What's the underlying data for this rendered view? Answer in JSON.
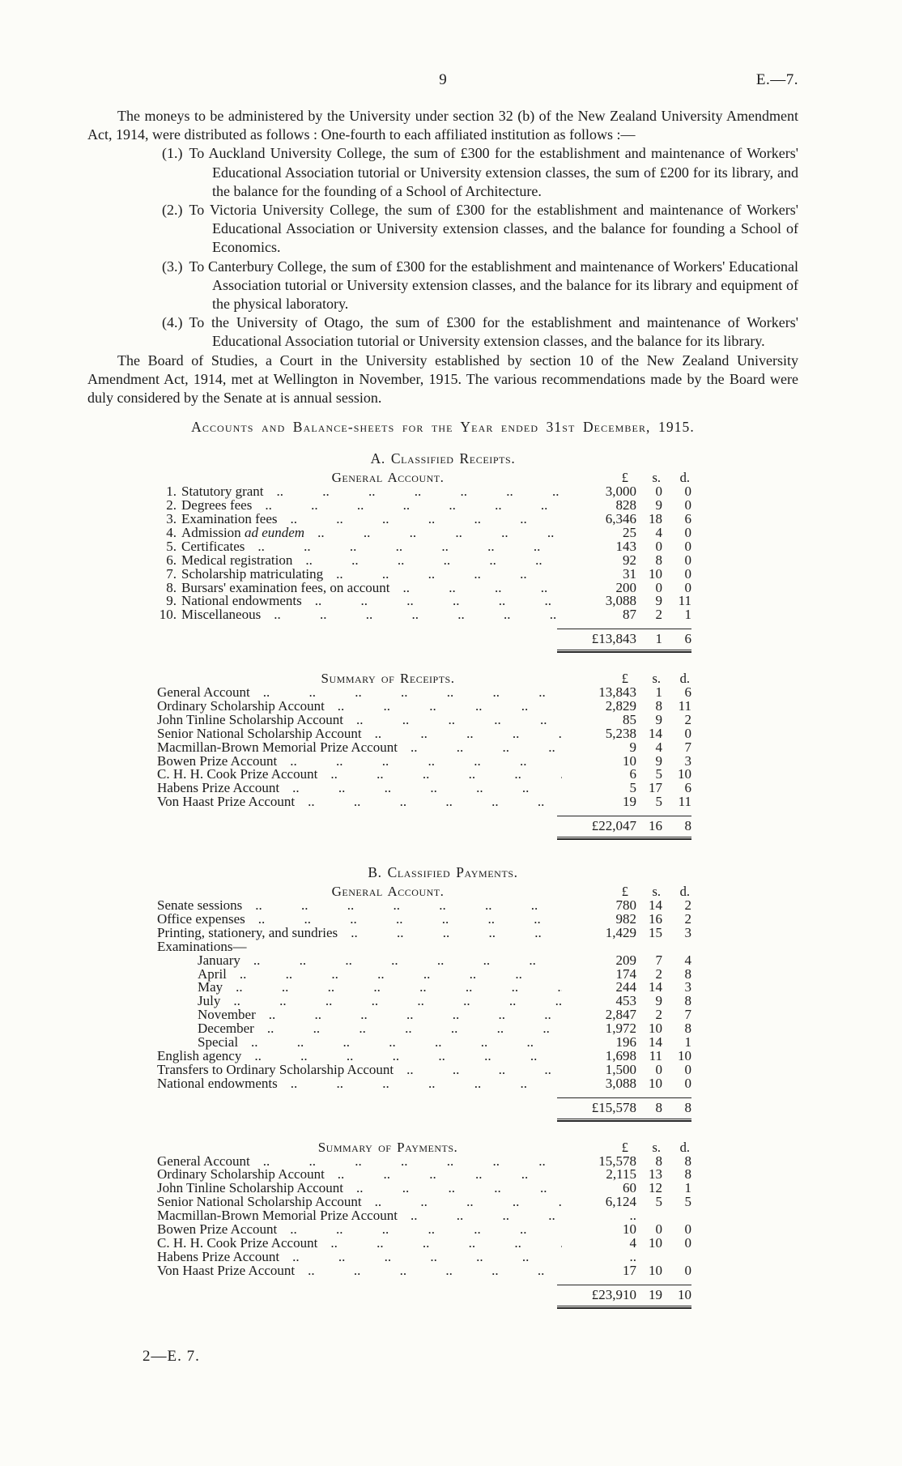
{
  "page": {
    "number": "9",
    "doc_ref": "E.—7.",
    "footer": "2—E. 7."
  },
  "intro": {
    "para1": "The moneys to be administered by the University under section 32 (b) of the New Zealand University Amendment Act, 1914, were distributed as follows : One-fourth to each affiliated institution as follows :—",
    "items": [
      {
        "num": "(1.)",
        "text": "To Auckland University College, the sum of £300 for the establishment and maintenance of Workers' Educational Association tutorial or University extension classes, the sum of £200 for its library, and the balance for the founding of a School of Architecture."
      },
      {
        "num": "(2.)",
        "text": "To Victoria University College, the sum of £300 for the establishment and maintenance of Workers' Educational Association or University extension classes, and the balance for founding a School of Economics."
      },
      {
        "num": "(3.)",
        "text": "To Canterbury College, the sum of £300 for the establishment and maintenance of Workers' Educational Association tutorial or University extension classes, and the balance for its library and equipment of the physical laboratory."
      },
      {
        "num": "(4.)",
        "text": "To the University of Otago, the sum of £300 for the establishment and maintenance of Workers' Educational Association tutorial or University extension classes, and the balance for its library."
      }
    ],
    "para2": "The Board of Studies, a Court in the University established by section 10 of the New Zealand University Amendment Act, 1914, met at Wellington in November, 1915.  The various recommendations made by the Board were duly considered by the Senate at is annual session."
  },
  "accounts_heading": "Accounts and Balance-sheets for the Year ended 31st December, 1915.",
  "amount_columns": {
    "pounds": "£",
    "s": "s.",
    "d": "d."
  },
  "receipts": {
    "section_heading": "A. Classified Receipts.",
    "general": {
      "heading": "General Account.",
      "rows": [
        {
          "num": "1.",
          "label": "Statutory grant",
          "pounds": "3,000",
          "s": "0",
          "d": "0"
        },
        {
          "num": "2.",
          "label": "Degrees fees",
          "pounds": "828",
          "s": "9",
          "d": "0"
        },
        {
          "num": "3.",
          "label": "Examination fees",
          "pounds": "6,346",
          "s": "18",
          "d": "6"
        },
        {
          "num": "4.",
          "label": "Admission ",
          "label_italic": "ad eundem",
          "pounds": "25",
          "s": "4",
          "d": "0"
        },
        {
          "num": "5.",
          "label": "Certificates",
          "pounds": "143",
          "s": "0",
          "d": "0"
        },
        {
          "num": "6.",
          "label": "Medical registration",
          "pounds": "92",
          "s": "8",
          "d": "0"
        },
        {
          "num": "7.",
          "label": "Scholarship matriculating",
          "pounds": "31",
          "s": "10",
          "d": "0"
        },
        {
          "num": "8.",
          "label": "Bursars' examination fees, on account",
          "pounds": "200",
          "s": "0",
          "d": "0"
        },
        {
          "num": "9.",
          "label": "National endowments",
          "pounds": "3,088",
          "s": "9",
          "d": "11"
        },
        {
          "num": "10.",
          "label": "Miscellaneous",
          "pounds": "87",
          "s": "2",
          "d": "1"
        }
      ],
      "total": {
        "pounds": "£13,843",
        "s": "1",
        "d": "6"
      }
    },
    "summary": {
      "heading": "Summary of Receipts.",
      "rows": [
        {
          "label": "General Account",
          "pounds": "13,843",
          "s": "1",
          "d": "6"
        },
        {
          "label": "Ordinary Scholarship Account",
          "pounds": "2,829",
          "s": "8",
          "d": "11"
        },
        {
          "label": "John Tinline Scholarship Account",
          "pounds": "85",
          "s": "9",
          "d": "2"
        },
        {
          "label": "Senior National Scholarship Account",
          "pounds": "5,238",
          "s": "14",
          "d": "0"
        },
        {
          "label": "Macmillan-Brown Memorial Prize Account",
          "pounds": "9",
          "s": "4",
          "d": "7"
        },
        {
          "label": "Bowen Prize Account",
          "pounds": "10",
          "s": "9",
          "d": "3"
        },
        {
          "label": "C. H. H. Cook Prize Account",
          "pounds": "6",
          "s": "5",
          "d": "10"
        },
        {
          "label": "Habens Prize Account",
          "pounds": "5",
          "s": "17",
          "d": "6"
        },
        {
          "label": "Von Haast Prize Account",
          "pounds": "19",
          "s": "5",
          "d": "11"
        }
      ],
      "total": {
        "pounds": "£22,047",
        "s": "16",
        "d": "8"
      }
    }
  },
  "payments": {
    "section_heading": "B. Classified Payments.",
    "general": {
      "heading": "General Account.",
      "rows": [
        {
          "label": "Senate sessions",
          "pounds": "780",
          "s": "14",
          "d": "2"
        },
        {
          "label": "Office expenses",
          "pounds": "982",
          "s": "16",
          "d": "2"
        },
        {
          "label": "Printing, stationery, and sundries",
          "pounds": "1,429",
          "s": "15",
          "d": "3"
        },
        {
          "label": "Examinations—",
          "leader": false
        },
        {
          "label": "January",
          "indent": true,
          "pounds": "209",
          "s": "7",
          "d": "4"
        },
        {
          "label": "April",
          "indent": true,
          "pounds": "174",
          "s": "2",
          "d": "8"
        },
        {
          "label": "May",
          "indent": true,
          "pounds": "244",
          "s": "14",
          "d": "3"
        },
        {
          "label": "July",
          "indent": true,
          "pounds": "453",
          "s": "9",
          "d": "8"
        },
        {
          "label": "November",
          "indent": true,
          "pounds": "2,847",
          "s": "2",
          "d": "7"
        },
        {
          "label": "December",
          "indent": true,
          "pounds": "1,972",
          "s": "10",
          "d": "8"
        },
        {
          "label": "Special",
          "indent": true,
          "pounds": "196",
          "s": "14",
          "d": "1"
        },
        {
          "label": "English agency",
          "pounds": "1,698",
          "s": "11",
          "d": "10"
        },
        {
          "label": "Transfers to Ordinary Scholarship Account",
          "pounds": "1,500",
          "s": "0",
          "d": "0"
        },
        {
          "label": "National endowments",
          "pounds": "3,088",
          "s": "10",
          "d": "0"
        }
      ],
      "total": {
        "pounds": "£15,578",
        "s": "8",
        "d": "8"
      }
    },
    "summary": {
      "heading": "Summary of Payments.",
      "rows": [
        {
          "label": "General Account",
          "pounds": "15,578",
          "s": "8",
          "d": "8"
        },
        {
          "label": "Ordinary Scholarship Account",
          "pounds": "2,115",
          "s": "13",
          "d": "8"
        },
        {
          "label": "John Tinline Scholarship Account",
          "pounds": "60",
          "s": "12",
          "d": "1"
        },
        {
          "label": "Senior National Scholarship Account",
          "pounds": "6,124",
          "s": "5",
          "d": "5"
        },
        {
          "label": "Macmillan-Brown Memorial Prize Account",
          "pounds": "..",
          "s": "",
          "d": ""
        },
        {
          "label": "Bowen Prize Account",
          "pounds": "10",
          "s": "0",
          "d": "0"
        },
        {
          "label": "C. H. H. Cook Prize Account",
          "pounds": "4",
          "s": "10",
          "d": "0"
        },
        {
          "label": "Habens Prize Account",
          "pounds": "..",
          "s": "",
          "d": ""
        },
        {
          "label": "Von Haast Prize Account",
          "pounds": "17",
          "s": "10",
          "d": "0"
        }
      ],
      "total": {
        "pounds": "£23,910",
        "s": "19",
        "d": "10"
      }
    }
  }
}
